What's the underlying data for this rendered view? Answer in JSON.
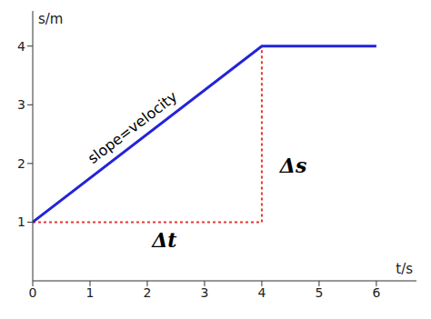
{
  "chart_data": {
    "type": "line",
    "x": [
      0,
      4,
      6
    ],
    "values": [
      1,
      4,
      4
    ],
    "color": "#2323d9",
    "line_style": "solid",
    "xlabel": "t/s",
    "ylabel": "s/m",
    "xlim": [
      0,
      6.7
    ],
    "ylim": [
      0,
      4.6
    ],
    "xticks": [
      0,
      1,
      2,
      3,
      4,
      5,
      6
    ],
    "yticks": [
      1,
      2,
      3,
      4
    ],
    "grid": false,
    "guide": {
      "x": [
        0,
        4,
        4
      ],
      "values": [
        1,
        1,
        4
      ],
      "color": "#e53935",
      "line_style": "dotted"
    },
    "annotations": [
      {
        "text": "slope=velocity",
        "x": 1.75,
        "y": 2.6
      },
      {
        "text": "Δs",
        "x": 4.55,
        "y": 1.94
      },
      {
        "text": "Δt",
        "x": 2.3,
        "y": 0.66
      }
    ]
  }
}
